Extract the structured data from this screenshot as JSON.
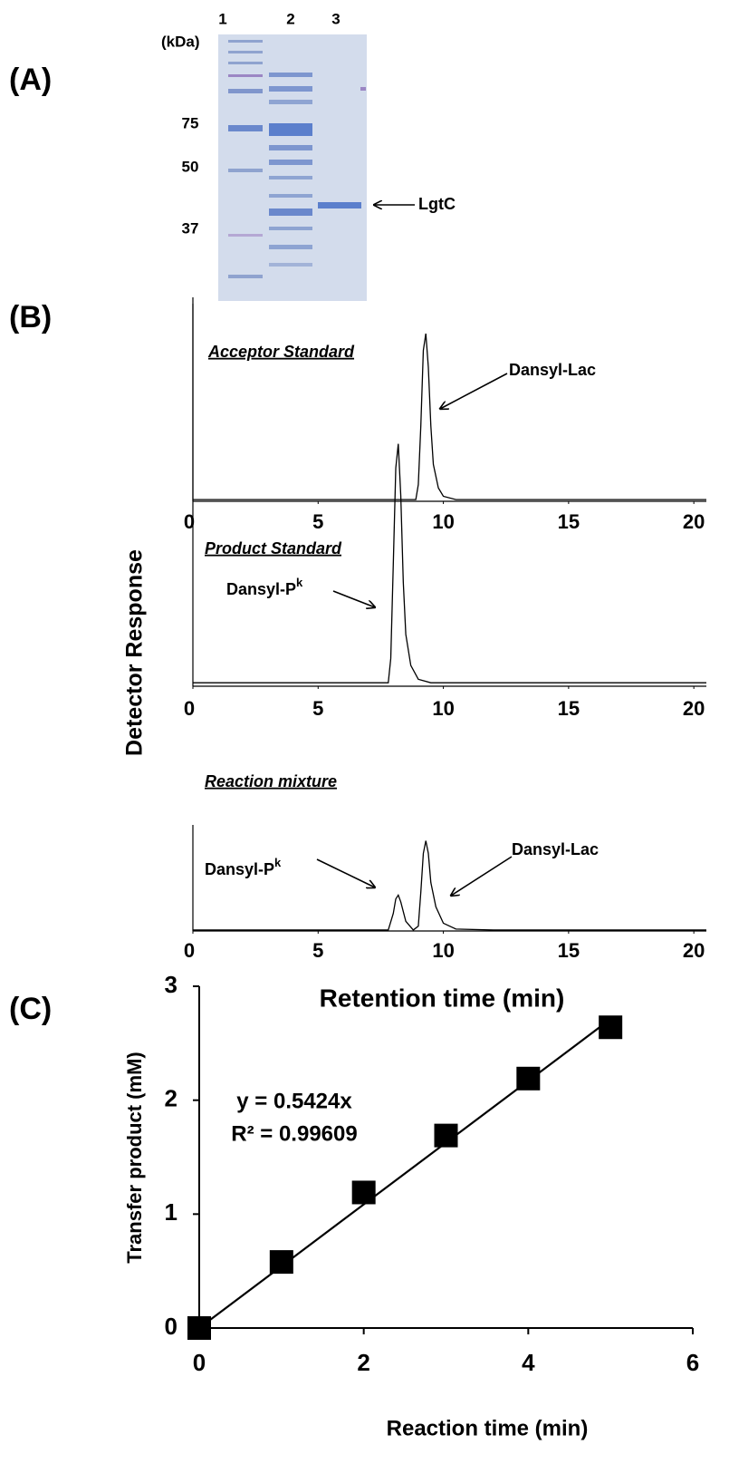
{
  "panel_labels": [
    "(A)",
    "(B)",
    "(C)"
  ],
  "gel": {
    "lanes": [
      "1",
      "2",
      "3"
    ],
    "unit": "(kDa)",
    "markers": [
      "75",
      "50",
      "37"
    ],
    "annotation": "LgtC"
  },
  "shared": {
    "y_label": "Detector Response",
    "x_label": "Retention time (min)"
  },
  "chart_data": [
    {
      "type": "line",
      "title": "Acceptor Standard",
      "color": "#000000",
      "x": [
        0,
        5,
        8.9,
        9.0,
        9.1,
        9.2,
        9.3,
        9.4,
        9.5,
        9.6,
        9.8,
        10.0,
        10.5,
        12,
        20.5
      ],
      "values": [
        1,
        1,
        1,
        10,
        45,
        90,
        100,
        80,
        45,
        22,
        8,
        3,
        1,
        1,
        1
      ],
      "xlim": [
        0,
        20.5
      ],
      "ylim": [
        0,
        100
      ],
      "xticks": [
        0,
        5,
        10,
        15,
        20
      ],
      "annotations": [
        {
          "text": "Dansyl-Lac"
        }
      ]
    },
    {
      "type": "line",
      "title": "Product Standard",
      "color": "#000000",
      "x": [
        0,
        5,
        7.8,
        7.9,
        8.0,
        8.1,
        8.2,
        8.3,
        8.4,
        8.5,
        8.7,
        9.0,
        9.5,
        12,
        20.5
      ],
      "values": [
        1,
        1,
        1,
        8,
        35,
        63,
        70,
        55,
        30,
        15,
        6,
        2,
        1,
        1,
        1
      ],
      "xlim": [
        0,
        20.5
      ],
      "ylim": [
        0,
        100
      ],
      "xticks": [
        0,
        5,
        10,
        15,
        20
      ],
      "annotations": [
        {
          "text": "Dansyl-P",
          "sup": "k"
        }
      ]
    },
    {
      "type": "line",
      "title": "Reaction mixture",
      "color": "#000000",
      "x": [
        0,
        5,
        7.8,
        8.0,
        8.1,
        8.2,
        8.3,
        8.5,
        8.8,
        9.0,
        9.1,
        9.2,
        9.3,
        9.4,
        9.5,
        9.7,
        10,
        10.5,
        12,
        20.5
      ],
      "values": [
        1,
        1,
        1,
        18,
        33,
        37,
        30,
        10,
        1,
        5,
        40,
        80,
        93,
        80,
        50,
        25,
        8,
        2,
        1,
        1
      ],
      "xlim": [
        0,
        20.5
      ],
      "ylim": [
        0,
        100
      ],
      "xticks": [
        0,
        5,
        10,
        15,
        20
      ],
      "annotations": [
        {
          "text": "Dansyl-P",
          "sup": "k"
        },
        {
          "text": "Dansyl-Lac"
        }
      ]
    },
    {
      "type": "scatter",
      "color": "#000000",
      "x_label": "Reaction time (min)",
      "y_label": "Transfer product (mM)",
      "x": [
        0,
        1,
        2,
        3,
        4,
        5
      ],
      "values": [
        0,
        0.58,
        1.19,
        1.69,
        2.19,
        2.64
      ],
      "xlim": [
        0,
        6
      ],
      "ylim": [
        0,
        3
      ],
      "xticks": [
        0,
        2,
        4,
        6
      ],
      "yticks": [
        0,
        1,
        2,
        3
      ],
      "fit": {
        "slope": 0.5424,
        "label": "y = 0.5424x",
        "r2_label": "R² = 0.99609"
      }
    }
  ]
}
